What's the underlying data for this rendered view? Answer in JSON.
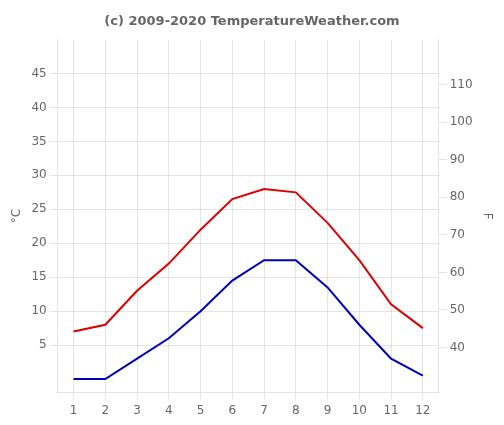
{
  "chart_data": {
    "type": "line",
    "title": "(c) 2009-2020 TemperatureWeather.com",
    "ylabel": "°C",
    "y2label": "F",
    "x": [
      1,
      2,
      3,
      4,
      5,
      6,
      7,
      8,
      9,
      10,
      11,
      12
    ],
    "xlim": [
      0.5,
      12.5
    ],
    "xticks": [
      1,
      2,
      3,
      4,
      5,
      6,
      7,
      8,
      9,
      10,
      11,
      12
    ],
    "series": [
      {
        "color": "#dd0000",
        "values": [
          7.0,
          8.0,
          13.0,
          17.0,
          22.0,
          26.5,
          28.0,
          27.5,
          23.0,
          17.5,
          11.0,
          7.5
        ]
      },
      {
        "color": "#0000bb",
        "values": [
          0.0,
          0.0,
          3.0,
          6.0,
          10.0,
          14.5,
          17.5,
          17.5,
          13.5,
          8.0,
          3.0,
          0.5
        ]
      }
    ],
    "ylim": [
      -2,
      50
    ],
    "yticks": [
      5,
      10,
      15,
      20,
      25,
      30,
      35,
      40,
      45
    ],
    "y2lim": [
      28.0,
      122.0
    ],
    "y2ticks": [
      40,
      50,
      60,
      70,
      80,
      90,
      100,
      110
    ],
    "grid": true
  }
}
